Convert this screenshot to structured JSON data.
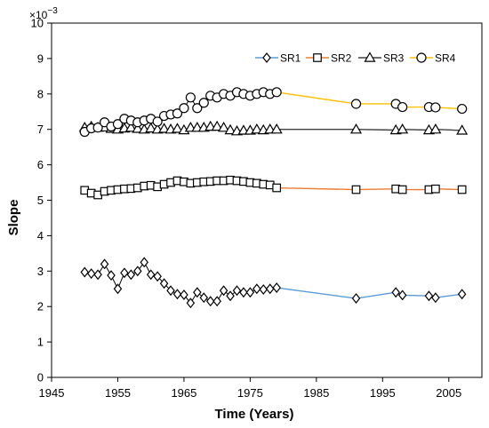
{
  "chart_data": {
    "type": "line",
    "xlabel": "Time (Years)",
    "ylabel": "Slope",
    "y_multiplier": "×10",
    "y_exponent": "−3",
    "xlim": [
      1945,
      2010
    ],
    "ylim": [
      0,
      10
    ],
    "x_ticks": [
      "1945",
      "1955",
      "1965",
      "1975",
      "1985",
      "1995",
      "2005"
    ],
    "y_ticks": [
      "0",
      "1",
      "2",
      "3",
      "4",
      "5",
      "6",
      "7",
      "8",
      "9",
      "10"
    ],
    "grid": false,
    "legend_position": "top-right",
    "series": [
      {
        "name": "SR1",
        "marker": "diamond",
        "line_color": "#5b9bd5",
        "x": [
          1950,
          1951,
          1952,
          1953,
          1954,
          1955,
          1956,
          1957,
          1958,
          1959,
          1960,
          1961,
          1962,
          1963,
          1964,
          1965,
          1966,
          1967,
          1968,
          1969,
          1970,
          1971,
          1972,
          1973,
          1974,
          1975,
          1976,
          1977,
          1978,
          1979,
          1991,
          1997,
          1998,
          2002,
          2003,
          2007
        ],
        "y": [
          2.97,
          2.93,
          2.9,
          3.2,
          2.88,
          2.5,
          2.95,
          2.9,
          3.0,
          3.25,
          2.9,
          2.85,
          2.65,
          2.45,
          2.35,
          2.33,
          2.1,
          2.4,
          2.25,
          2.15,
          2.15,
          2.45,
          2.3,
          2.45,
          2.4,
          2.4,
          2.5,
          2.48,
          2.5,
          2.53,
          2.23,
          2.4,
          2.32,
          2.3,
          2.25,
          2.35
        ]
      },
      {
        "name": "SR2",
        "marker": "square",
        "line_color": "#ed7d31",
        "x": [
          1950,
          1951,
          1952,
          1953,
          1954,
          1955,
          1956,
          1957,
          1958,
          1959,
          1960,
          1961,
          1962,
          1963,
          1964,
          1965,
          1966,
          1967,
          1968,
          1969,
          1970,
          1971,
          1972,
          1973,
          1974,
          1975,
          1976,
          1977,
          1978,
          1979,
          1991,
          1997,
          1998,
          2002,
          2003,
          2007
        ],
        "y": [
          5.28,
          5.2,
          5.15,
          5.25,
          5.28,
          5.3,
          5.32,
          5.33,
          5.35,
          5.4,
          5.42,
          5.38,
          5.45,
          5.5,
          5.55,
          5.52,
          5.48,
          5.5,
          5.52,
          5.53,
          5.55,
          5.55,
          5.57,
          5.55,
          5.53,
          5.5,
          5.48,
          5.45,
          5.43,
          5.35,
          5.3,
          5.32,
          5.3,
          5.3,
          5.32,
          5.3
        ]
      },
      {
        "name": "SR3",
        "marker": "triangle",
        "line_color": "#404040",
        "x": [
          1950,
          1951,
          1952,
          1953,
          1954,
          1955,
          1956,
          1957,
          1958,
          1959,
          1960,
          1961,
          1962,
          1963,
          1964,
          1965,
          1966,
          1967,
          1968,
          1969,
          1970,
          1971,
          1972,
          1973,
          1974,
          1975,
          1976,
          1977,
          1978,
          1979,
          1991,
          1997,
          1998,
          2002,
          2003,
          2007
        ],
        "y": [
          7.05,
          7.08,
          7.05,
          7.06,
          7.02,
          7.0,
          7.03,
          7.05,
          7.02,
          7.0,
          7.03,
          7.0,
          7.02,
          7.0,
          7.02,
          6.98,
          7.05,
          7.05,
          7.05,
          7.08,
          7.08,
          7.05,
          6.98,
          6.95,
          6.97,
          6.97,
          7.0,
          6.98,
          7.0,
          7.0,
          7.0,
          6.98,
          7.0,
          6.98,
          7.0,
          6.97
        ]
      },
      {
        "name": "SR4",
        "marker": "circle",
        "line_color": "#ffc000",
        "x": [
          1950,
          1951,
          1952,
          1953,
          1954,
          1955,
          1956,
          1957,
          1958,
          1959,
          1960,
          1961,
          1962,
          1963,
          1964,
          1965,
          1966,
          1967,
          1968,
          1969,
          1970,
          1971,
          1972,
          1973,
          1974,
          1975,
          1976,
          1977,
          1978,
          1979,
          1991,
          1997,
          1998,
          2002,
          2003,
          2007
        ],
        "y": [
          6.93,
          7.03,
          7.05,
          7.2,
          7.08,
          7.15,
          7.3,
          7.25,
          7.2,
          7.25,
          7.3,
          7.22,
          7.38,
          7.42,
          7.45,
          7.6,
          7.9,
          7.6,
          7.75,
          7.95,
          7.9,
          8.0,
          7.95,
          8.05,
          8.0,
          7.95,
          8.0,
          8.05,
          8.0,
          8.05,
          7.72,
          7.72,
          7.63,
          7.63,
          7.62,
          7.58
        ]
      }
    ]
  }
}
